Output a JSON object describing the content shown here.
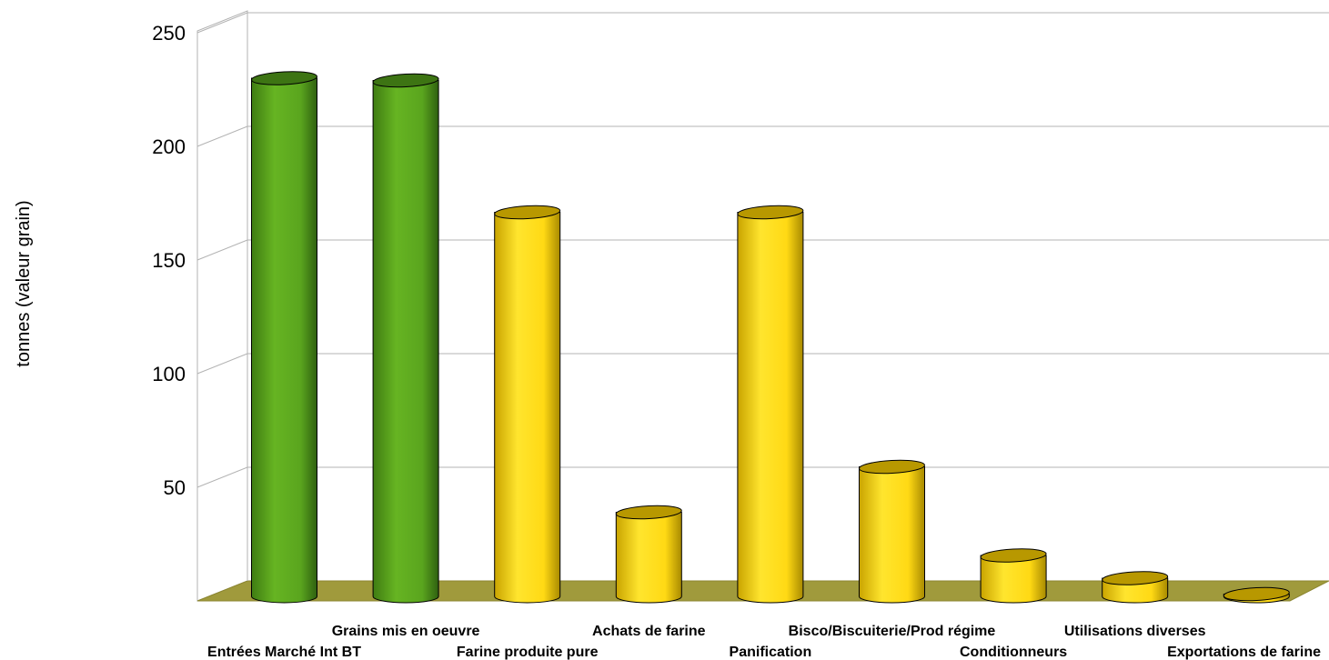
{
  "chart_data": {
    "type": "bar",
    "title": "",
    "xlabel": "",
    "ylabel": "tonnes (valeur grain)",
    "ylim": [
      0,
      250
    ],
    "yticks": [
      50,
      100,
      150,
      200,
      250
    ],
    "grid": true,
    "legend": "none",
    "categories": [
      "Entrées Marché Int BT",
      "Grains mis en oeuvre",
      "Farine produite pure",
      "Achats de farine",
      "Panification",
      "Bisco/Biscuiterie/Prod régime",
      "Conditionneurs",
      "Utilisations diverses",
      "Exportations de farine"
    ],
    "series": [
      {
        "values": [
          228,
          227,
          169,
          37,
          169,
          57,
          18,
          8,
          1
        ]
      }
    ],
    "bar_colors": [
      "#5aa51e",
      "#5aa51e",
      "#ffdd1e",
      "#ffdd1e",
      "#ffdd1e",
      "#ffdd1e",
      "#ffdd1e",
      "#ffdd1e",
      "#ffdd1e"
    ],
    "floor_color": "#a09a3c"
  }
}
